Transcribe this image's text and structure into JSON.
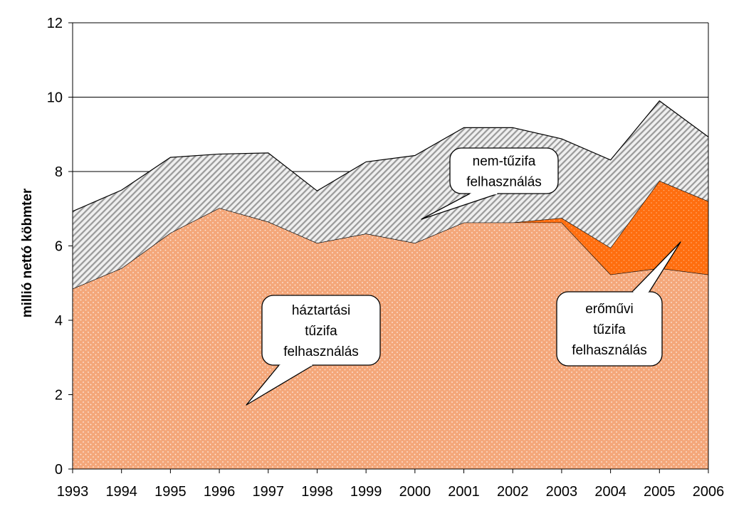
{
  "chart_data": {
    "type": "area",
    "stacked": true,
    "x": [
      "1993",
      "1994",
      "1995",
      "1996",
      "1997",
      "1998",
      "1999",
      "2000",
      "2001",
      "2002",
      "2003",
      "2004",
      "2005",
      "2006"
    ],
    "ylabel": "millió nettó köbmter",
    "xlabel": "",
    "ylim": [
      0,
      12
    ],
    "yticks": [
      "0",
      "2",
      "4",
      "6",
      "8",
      "10",
      "12"
    ],
    "grid": true,
    "series": [
      {
        "name": "háztartási tűzifa felhasználás",
        "values": [
          4.85,
          5.4,
          6.35,
          7.02,
          6.65,
          6.08,
          6.33,
          6.08,
          6.63,
          6.63,
          6.63,
          5.23,
          5.4,
          5.23
        ],
        "color": "#f4a77a",
        "pattern": "dots"
      },
      {
        "name": "erőművi tűzifa felhasználás",
        "values": [
          0,
          0,
          0,
          0,
          0,
          0,
          0,
          0,
          0,
          0,
          0.12,
          0.72,
          2.35,
          1.97
        ],
        "color": "#ff6e0f",
        "pattern": "dots"
      },
      {
        "name": "nem-tűzifa felhasználás",
        "values": [
          2.08,
          2.1,
          2.03,
          1.45,
          1.85,
          1.4,
          1.93,
          2.35,
          2.55,
          2.55,
          2.13,
          2.36,
          2.15,
          1.73
        ],
        "color": "#d9d9d9",
        "pattern": "diagonal-stripes"
      }
    ],
    "callouts": [
      {
        "lines": [
          "nem-tűzifa",
          "felhasználás"
        ],
        "series": "nem-tűzifa felhasználás"
      },
      {
        "lines": [
          "háztartási",
          "tűzifa",
          "felhasználás"
        ],
        "series": "háztartási tűzifa felhasználás"
      },
      {
        "lines": [
          "erőművi",
          "tűzifa",
          "felhasználás"
        ],
        "series": "erőművi tűzifa felhasználás"
      }
    ]
  }
}
